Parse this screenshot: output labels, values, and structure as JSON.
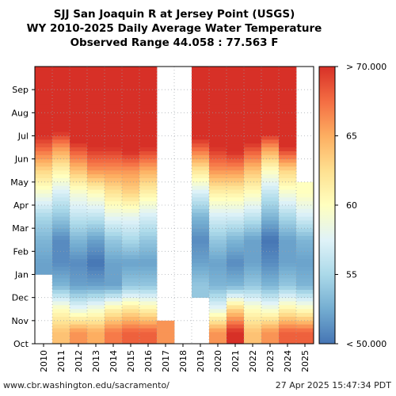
{
  "chart_data": {
    "type": "heatmap",
    "title_lines": [
      "SJJ San Joaquin R at Jersey Point (USGS)",
      "WY 2010-2025 Daily Average Water Temperature",
      "Observed Range 44.058 : 77.563 F"
    ],
    "x_categories": [
      "2010",
      "2011",
      "2012",
      "2013",
      "2014",
      "2015",
      "2016",
      "2017",
      "2018",
      "2019",
      "2020",
      "2021",
      "2022",
      "2023",
      "2024",
      "2025"
    ],
    "y_categories": [
      "Oct",
      "Nov",
      "Dec",
      "Jan",
      "Feb",
      "Mar",
      "Apr",
      "May",
      "Jun",
      "Jul",
      "Aug",
      "Sep"
    ],
    "colorbar": {
      "min": 50,
      "max": 70,
      "tick_values": [
        70,
        65,
        60,
        55,
        50
      ],
      "tick_labels": [
        "> 70.000",
        "65",
        "60",
        "55",
        "< 50.000"
      ],
      "colors": [
        "#4575b4",
        "#74add1",
        "#abd9e9",
        "#e0f3f8",
        "#ffffbf",
        "#fee090",
        "#fdae61",
        "#f46d43",
        "#d73027"
      ]
    },
    "approx_monthly_mean_temperature_F": {
      "2010": [
        null,
        null,
        null,
        52,
        53,
        55,
        59,
        63,
        68,
        72,
        73,
        71
      ],
      "2011": [
        64,
        60,
        53,
        51,
        51,
        54,
        57,
        61,
        66,
        72,
        73,
        72
      ],
      "2012": [
        66,
        58,
        52,
        51,
        53,
        56,
        59,
        64,
        69,
        73,
        73,
        72
      ],
      "2013": [
        65,
        59,
        52,
        50,
        52,
        56,
        60,
        66,
        70,
        74,
        74,
        72
      ],
      "2014": [
        67,
        61,
        52,
        52,
        54,
        58,
        62,
        66,
        70,
        74,
        74,
        73
      ],
      "2015": [
        68,
        62,
        54,
        52,
        55,
        58,
        63,
        66,
        71,
        74,
        75,
        73
      ],
      "2016": [
        68,
        61,
        54,
        52,
        54,
        57,
        61,
        65,
        70,
        73,
        73,
        72
      ],
      "2017": [
        66,
        null,
        null,
        null,
        null,
        null,
        null,
        null,
        null,
        null,
        null,
        null
      ],
      "2018": [
        null,
        null,
        null,
        null,
        null,
        null,
        null,
        null,
        null,
        null,
        null,
        null
      ],
      "2019": [
        null,
        null,
        54,
        52,
        51,
        53,
        57,
        62,
        68,
        73,
        74,
        72
      ],
      "2020": [
        66,
        58,
        53,
        52,
        54,
        57,
        61,
        66,
        70,
        74,
        74,
        73
      ],
      "2021": [
        70,
        63,
        53,
        51,
        53,
        57,
        61,
        66,
        71,
        75,
        74,
        72
      ],
      "2022": [
        64,
        60,
        54,
        52,
        52,
        56,
        60,
        64,
        69,
        74,
        75,
        73
      ],
      "2023": [
        66,
        59,
        53,
        51,
        50,
        53,
        56,
        60,
        66,
        73,
        74,
        72
      ],
      "2024": [
        68,
        61,
        54,
        52,
        52,
        55,
        59,
        63,
        70,
        75,
        74,
        72
      ],
      "2025": [
        68,
        60,
        53,
        52,
        53,
        57,
        60,
        null,
        null,
        null,
        null,
        null
      ]
    }
  },
  "footer": {
    "url": "www.cbr.washington.edu/sacramento/",
    "timestamp": "27 Apr 2025 15:47:34 PDT"
  }
}
